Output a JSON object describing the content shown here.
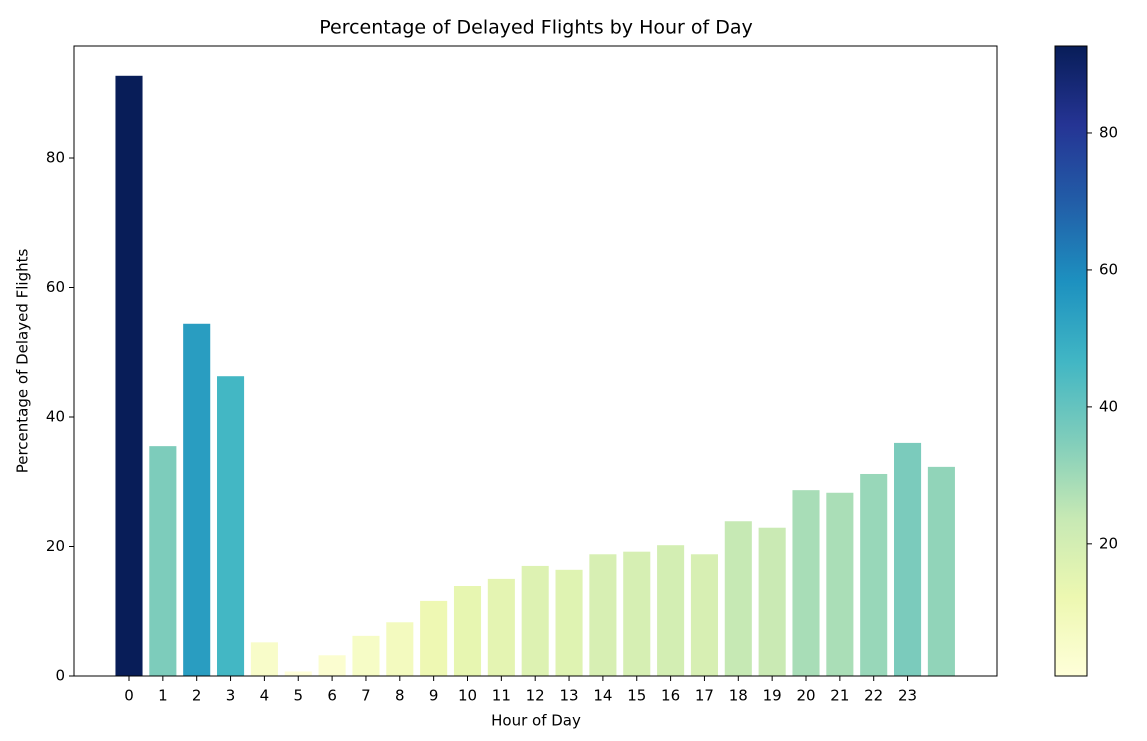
{
  "chart_data": {
    "type": "bar",
    "title": "Percentage of Delayed Flights by Hour of Day",
    "x_label": "Hour of Day",
    "y_label": "Percentage of Delayed Flights",
    "categories": [
      "0",
      "1",
      "2",
      "3",
      "4",
      "5",
      "6",
      "7",
      "8",
      "9",
      "10",
      "11",
      "12",
      "13",
      "14",
      "15",
      "16",
      "17",
      "18",
      "19",
      "20",
      "21",
      "22",
      "23",
      null
    ],
    "values": [
      92.7,
      35.5,
      54.4,
      46.3,
      5.2,
      0.7,
      3.2,
      6.2,
      8.3,
      11.6,
      13.9,
      15.0,
      17.0,
      16.4,
      18.8,
      19.2,
      20.2,
      18.8,
      23.9,
      22.9,
      28.7,
      28.3,
      31.2,
      36.0,
      32.3
    ],
    "ylim": [
      0,
      97.3
    ],
    "yticks": [
      0,
      20,
      40,
      60,
      80
    ],
    "colormap": [
      "#ffffd9",
      "#edf8b1",
      "#c7e9b4",
      "#7fcdbb",
      "#41b6c4",
      "#1d91c0",
      "#225ea8",
      "#253494",
      "#081d58"
    ],
    "colorbar_lim": [
      0.7,
      92.7
    ],
    "colorbar_ticks": [
      20,
      40,
      60,
      80
    ]
  }
}
